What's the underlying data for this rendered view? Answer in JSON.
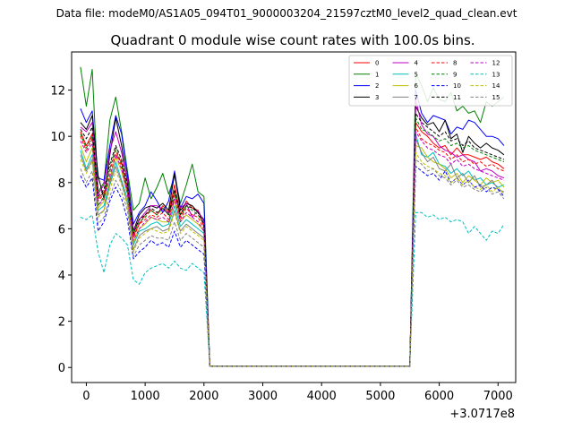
{
  "figure": {
    "suptitle": "Data file: modeM0/AS1A05_094T01_9000003204_21597cztM0_level2_quad_clean.evt"
  },
  "chart_data": {
    "type": "line",
    "title": "Quadrant 0 module wise count rates with 100.0s bins.",
    "xlabel": "",
    "ylabel": "",
    "x_offset_label": "+3.0717e8",
    "xlim": [
      -250,
      7300
    ],
    "ylim": [
      -0.65,
      13.65
    ],
    "x_ticks": [
      0,
      1000,
      2000,
      3000,
      4000,
      5000,
      6000,
      7000
    ],
    "x_tick_labels": [
      "0",
      "1000",
      "2000",
      "3000",
      "4000",
      "5000",
      "6000",
      "7000"
    ],
    "y_ticks": [
      0,
      2,
      4,
      6,
      8,
      10,
      12
    ],
    "y_tick_labels": [
      "0",
      "2",
      "4",
      "6",
      "8",
      "10",
      "12"
    ],
    "grid": false,
    "legend_position": "upper right",
    "legend_columns": 4,
    "series": [
      {
        "name": "0",
        "color": "#ff0000",
        "dash": "solid"
      },
      {
        "name": "1",
        "color": "#008000",
        "dash": "solid"
      },
      {
        "name": "2",
        "color": "#0000ff",
        "dash": "solid"
      },
      {
        "name": "3",
        "color": "#000000",
        "dash": "solid"
      },
      {
        "name": "4",
        "color": "#bf00bf",
        "dash": "solid"
      },
      {
        "name": "5",
        "color": "#00bfbf",
        "dash": "solid"
      },
      {
        "name": "6",
        "color": "#bfbf00",
        "dash": "solid"
      },
      {
        "name": "7",
        "color": "#808080",
        "dash": "solid"
      },
      {
        "name": "8",
        "color": "#ff0000",
        "dash": "dashed"
      },
      {
        "name": "9",
        "color": "#008000",
        "dash": "dashed"
      },
      {
        "name": "10",
        "color": "#0000ff",
        "dash": "dashed"
      },
      {
        "name": "11",
        "color": "#000000",
        "dash": "dashed"
      },
      {
        "name": "12",
        "color": "#bf00bf",
        "dash": "dashed"
      },
      {
        "name": "13",
        "color": "#00bfbf",
        "dash": "dashed"
      },
      {
        "name": "14",
        "color": "#bfbf00",
        "dash": "dashed"
      },
      {
        "name": "15",
        "color": "#808080",
        "dash": "dashed"
      }
    ],
    "series_values": {
      "x_segment1": [
        -100,
        0,
        100,
        200,
        300,
        400,
        500,
        600,
        700,
        800,
        900,
        1000,
        1100,
        1200,
        1300,
        1400,
        1500,
        1600,
        1700,
        1800,
        1900,
        2000,
        2100,
        2200,
        2300
      ],
      "x_segment2": [
        5500,
        5600,
        5700,
        5800,
        5900,
        6000,
        6100,
        6200,
        6300,
        6400,
        6500,
        6600,
        6700,
        6800,
        6900,
        7000,
        7100
      ],
      "gap_value": 0.05,
      "values": [
        {
          "name": "0",
          "seg1": [
            10.2,
            9.6,
            10.1,
            7.3,
            7.6,
            8.1,
            9.2,
            8.9,
            7.7,
            5.7,
            6.2,
            6.6,
            6.8,
            6.6,
            7.0,
            6.7,
            7.9,
            6.6,
            7.2,
            6.9,
            6.8,
            6.1,
            0.05,
            0.05,
            0.05
          ],
          "seg2": [
            0.05,
            10.6,
            10.2,
            10.0,
            9.7,
            9.5,
            9.6,
            9.2,
            9.5,
            9.2,
            9.2,
            9.1,
            9.0,
            9.1,
            8.9,
            8.8,
            8.6
          ]
        },
        {
          "name": "1",
          "seg1": [
            13.0,
            11.3,
            12.9,
            7.6,
            8.0,
            10.7,
            11.7,
            10.2,
            8.5,
            6.8,
            7.1,
            8.2,
            7.3,
            7.8,
            8.4,
            7.5,
            8.3,
            7.1,
            7.9,
            8.8,
            7.6,
            7.4,
            0.05,
            0.05,
            0.05
          ],
          "seg2": [
            0.05,
            12.7,
            12.2,
            11.5,
            12.1,
            11.6,
            11.5,
            11.9,
            11.1,
            11.3,
            11.0,
            11.1,
            10.6,
            11.5,
            11.3,
            11.5,
            11.7
          ]
        },
        {
          "name": "2",
          "seg1": [
            11.2,
            10.6,
            11.1,
            8.2,
            8.1,
            9.6,
            10.9,
            10.1,
            8.3,
            6.2,
            6.7,
            7.0,
            7.6,
            7.2,
            6.7,
            7.2,
            8.5,
            6.9,
            7.4,
            7.3,
            7.5,
            7.1,
            0.05,
            0.05,
            0.05
          ],
          "seg2": [
            0.05,
            12.0,
            11.0,
            10.6,
            10.9,
            10.8,
            10.7,
            10.1,
            10.4,
            10.3,
            10.7,
            10.6,
            10.3,
            10.0,
            10.0,
            9.9,
            9.6
          ]
        },
        {
          "name": "3",
          "seg1": [
            10.6,
            10.3,
            10.9,
            8.3,
            7.3,
            9.2,
            10.8,
            9.6,
            8.0,
            5.9,
            6.6,
            6.9,
            7.0,
            6.9,
            7.1,
            6.8,
            8.4,
            6.8,
            7.1,
            7.0,
            6.7,
            6.4,
            0.05,
            0.05,
            0.05
          ],
          "seg2": [
            0.05,
            11.3,
            10.8,
            10.5,
            10.6,
            10.2,
            10.7,
            9.9,
            10.1,
            9.3,
            10.0,
            9.7,
            9.5,
            9.7,
            9.5,
            9.4,
            9.2
          ]
        },
        {
          "name": "4",
          "seg1": [
            10.4,
            10.2,
            10.6,
            7.5,
            7.9,
            9.4,
            10.2,
            9.3,
            8.1,
            5.9,
            6.4,
            6.7,
            7.0,
            7.0,
            6.8,
            6.7,
            7.3,
            6.9,
            7.1,
            6.5,
            6.8,
            6.3,
            0.05,
            0.05,
            0.05
          ],
          "seg2": [
            0.05,
            11.6,
            10.5,
            10.1,
            10.0,
            9.6,
            9.4,
            9.3,
            9.1,
            9.2,
            9.0,
            8.9,
            8.5,
            8.6,
            8.5,
            8.3,
            8.2
          ]
        },
        {
          "name": "5",
          "seg1": [
            9.4,
            8.6,
            9.2,
            6.8,
            7.0,
            8.0,
            8.9,
            8.1,
            7.3,
            5.3,
            5.9,
            6.0,
            6.2,
            6.3,
            6.1,
            6.2,
            7.0,
            6.1,
            6.4,
            6.2,
            6.0,
            5.8,
            0.05,
            0.05,
            0.05
          ],
          "seg2": [
            0.05,
            10.1,
            9.2,
            9.1,
            9.3,
            8.8,
            8.7,
            8.4,
            8.6,
            8.3,
            8.5,
            8.1,
            8.2,
            7.9,
            8.0,
            7.8,
            7.9
          ]
        },
        {
          "name": "6",
          "seg1": [
            9.6,
            8.9,
            9.5,
            6.9,
            7.2,
            8.2,
            9.1,
            8.5,
            7.5,
            5.4,
            6.0,
            6.2,
            6.5,
            6.4,
            6.3,
            6.3,
            7.2,
            6.3,
            6.6,
            6.4,
            6.2,
            5.9,
            0.05,
            0.05,
            0.05
          ],
          "seg2": [
            0.05,
            9.6,
            9.5,
            9.1,
            8.9,
            8.8,
            8.6,
            8.2,
            8.4,
            8.0,
            8.3,
            8.1,
            7.9,
            8.2,
            8.0,
            8.1,
            7.8
          ]
        },
        {
          "name": "7",
          "seg1": [
            9.2,
            8.5,
            9.0,
            6.6,
            6.8,
            7.9,
            8.7,
            8.0,
            7.1,
            5.1,
            5.7,
            5.9,
            6.0,
            6.1,
            5.9,
            6.0,
            6.8,
            5.9,
            6.2,
            6.0,
            5.8,
            5.6,
            0.05,
            0.05,
            0.05
          ],
          "seg2": [
            0.05,
            9.9,
            9.3,
            8.9,
            9.1,
            8.6,
            8.5,
            8.8,
            8.2,
            8.4,
            8.0,
            8.3,
            7.8,
            7.9,
            8.1,
            7.7,
            7.6
          ]
        },
        {
          "name": "8",
          "seg1": [
            10.0,
            9.4,
            9.9,
            7.2,
            7.5,
            8.5,
            9.4,
            8.7,
            7.6,
            5.6,
            6.2,
            6.4,
            6.6,
            6.5,
            6.7,
            6.4,
            7.5,
            6.4,
            6.9,
            6.6,
            6.5,
            6.0,
            0.05,
            0.05,
            0.05
          ],
          "seg2": [
            0.05,
            10.4,
            9.9,
            9.7,
            9.6,
            9.4,
            9.3,
            9.0,
            9.2,
            8.9,
            9.0,
            8.8,
            8.9,
            8.7,
            8.8,
            8.6,
            8.5
          ]
        },
        {
          "name": "9",
          "seg1": [
            10.1,
            9.5,
            10.0,
            7.0,
            7.4,
            8.6,
            9.5,
            8.8,
            7.7,
            5.8,
            6.3,
            6.5,
            6.8,
            6.6,
            6.9,
            6.6,
            7.6,
            6.5,
            7.0,
            6.8,
            6.6,
            6.2,
            0.05,
            0.05,
            0.05
          ],
          "seg2": [
            0.05,
            10.8,
            10.3,
            10.2,
            10.0,
            9.8,
            9.9,
            9.6,
            9.7,
            9.5,
            9.6,
            9.4,
            9.3,
            9.2,
            9.1,
            9.0,
            8.9
          ]
        },
        {
          "name": "10",
          "seg1": [
            8.3,
            7.8,
            8.2,
            5.9,
            6.3,
            7.2,
            7.8,
            7.3,
            6.4,
            4.7,
            5.0,
            5.2,
            5.5,
            5.3,
            5.4,
            5.2,
            5.9,
            5.2,
            5.5,
            5.3,
            5.1,
            4.9,
            0.05,
            0.05,
            0.05
          ],
          "seg2": [
            0.05,
            8.7,
            8.5,
            8.3,
            8.4,
            8.1,
            8.5,
            8.0,
            8.2,
            7.9,
            8.1,
            7.8,
            7.9,
            7.6,
            7.8,
            7.7,
            7.4
          ]
        },
        {
          "name": "11",
          "seg1": [
            10.3,
            9.9,
            10.4,
            7.4,
            7.7,
            8.8,
            9.6,
            9.0,
            7.9,
            5.8,
            6.4,
            6.6,
            6.9,
            6.7,
            6.9,
            6.6,
            7.7,
            6.6,
            7.0,
            6.9,
            6.7,
            6.2,
            0.05,
            0.05,
            0.05
          ],
          "seg2": [
            0.05,
            11.0,
            10.6,
            10.4,
            10.2,
            10.0,
            10.2,
            9.8,
            9.9,
            9.6,
            9.8,
            9.5,
            9.4,
            9.3,
            9.2,
            9.1,
            9.0
          ]
        },
        {
          "name": "12",
          "seg1": [
            9.8,
            9.3,
            9.7,
            7.0,
            7.3,
            8.3,
            9.2,
            8.6,
            7.5,
            5.5,
            6.0,
            6.3,
            6.5,
            6.4,
            6.5,
            6.3,
            7.3,
            6.3,
            6.7,
            6.5,
            6.3,
            5.9,
            0.05,
            0.05,
            0.05
          ],
          "seg2": [
            0.05,
            10.2,
            9.8,
            9.5,
            9.4,
            9.2,
            9.1,
            8.8,
            9.0,
            8.7,
            8.8,
            8.6,
            8.5,
            8.4,
            8.3,
            8.2,
            8.1
          ]
        },
        {
          "name": "13",
          "seg1": [
            6.5,
            6.4,
            6.6,
            5.0,
            4.1,
            5.3,
            5.8,
            5.6,
            5.3,
            3.8,
            3.6,
            4.1,
            4.3,
            4.4,
            4.5,
            4.3,
            4.6,
            4.3,
            4.2,
            4.5,
            4.3,
            4.1,
            0.05,
            0.05,
            0.05
          ],
          "seg2": [
            0.05,
            6.7,
            6.7,
            6.5,
            6.6,
            6.4,
            6.5,
            6.3,
            6.4,
            6.3,
            5.8,
            6.1,
            5.8,
            5.5,
            5.9,
            5.8,
            6.2
          ]
        },
        {
          "name": "14",
          "seg1": [
            9.0,
            8.4,
            8.9,
            6.5,
            6.8,
            7.7,
            8.5,
            7.9,
            7.0,
            5.0,
            5.6,
            5.8,
            6.0,
            5.9,
            5.8,
            5.9,
            6.7,
            5.8,
            6.1,
            5.9,
            5.7,
            5.5,
            0.05,
            0.05,
            0.05
          ],
          "seg2": [
            0.05,
            9.3,
            8.9,
            8.7,
            8.6,
            8.4,
            8.3,
            8.0,
            8.2,
            7.9,
            8.1,
            7.8,
            7.7,
            7.9,
            7.6,
            7.8,
            7.5
          ]
        },
        {
          "name": "15",
          "seg1": [
            8.6,
            8.0,
            8.5,
            6.2,
            6.5,
            7.4,
            8.1,
            7.6,
            6.8,
            4.8,
            5.3,
            5.5,
            5.7,
            5.6,
            5.6,
            5.5,
            6.3,
            5.5,
            5.8,
            5.6,
            5.4,
            5.2,
            0.05,
            0.05,
            0.05
          ],
          "seg2": [
            0.05,
            9.0,
            8.8,
            8.5,
            8.6,
            8.3,
            8.2,
            7.9,
            8.1,
            7.8,
            7.9,
            7.7,
            7.6,
            7.8,
            7.5,
            7.6,
            7.3
          ]
        }
      ]
    }
  }
}
